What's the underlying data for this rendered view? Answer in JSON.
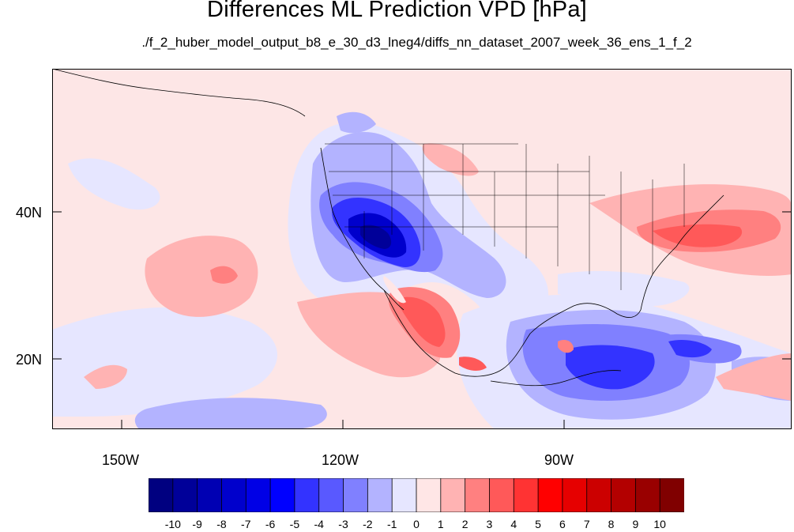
{
  "title": "Differences ML Prediction VPD [hPa]",
  "subtitle": "./f_2_huber_model_output_b8_e_30_d3_lneg4/diffs_nn_dataset_2007_week_36_ens_1_f_2",
  "axes": {
    "lat_labels": [
      "40N",
      "20N"
    ],
    "lon_labels": [
      "150W",
      "120W",
      "90W"
    ]
  },
  "colorbar": {
    "tick_labels": [
      "-10",
      "-9",
      "-8",
      "-7",
      "-6",
      "-5",
      "-4",
      "-3",
      "-2",
      "-1",
      "0",
      "1",
      "2",
      "3",
      "4",
      "5",
      "6",
      "7",
      "8",
      "9",
      "10"
    ],
    "colors": [
      "#000080",
      "#000099",
      "#0000b3",
      "#0000cc",
      "#0000e6",
      "#0000ff",
      "#3333ff",
      "#5959ff",
      "#8080ff",
      "#b3b3ff",
      "#e6e6ff",
      "#ffe6e6",
      "#ffb3b3",
      "#ff8080",
      "#ff5959",
      "#ff3333",
      "#ff0000",
      "#e60000",
      "#cc0000",
      "#b30000",
      "#990000",
      "#800000"
    ]
  },
  "colors": {
    "background_positive": "#fde6e6",
    "weak_negative": "#e6e6ff",
    "border": "#000000"
  }
}
